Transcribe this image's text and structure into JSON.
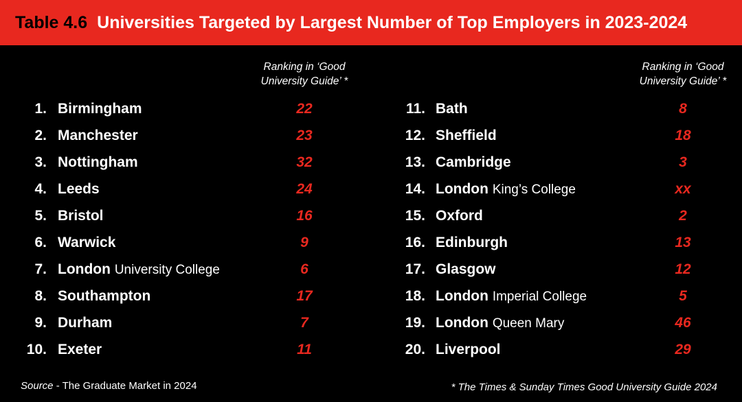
{
  "header": {
    "table_number": "Table 4.6",
    "title": "Universities Targeted by Largest Number of Top Employers in 2023-2024"
  },
  "column_header": {
    "line1": "Ranking in ‘Good",
    "line2": "University Guide’ *"
  },
  "left_rows": [
    {
      "num": "1.",
      "name": "Birmingham",
      "sub": "",
      "rank": "22"
    },
    {
      "num": "2.",
      "name": "Manchester",
      "sub": "",
      "rank": "23"
    },
    {
      "num": "3.",
      "name": "Nottingham",
      "sub": "",
      "rank": "32"
    },
    {
      "num": "4.",
      "name": "Leeds",
      "sub": "",
      "rank": "24"
    },
    {
      "num": "5.",
      "name": "Bristol",
      "sub": "",
      "rank": "16"
    },
    {
      "num": "6.",
      "name": "Warwick",
      "sub": "",
      "rank": "9"
    },
    {
      "num": "7.",
      "name": "London",
      "sub": "University College",
      "rank": "6"
    },
    {
      "num": "8.",
      "name": "Southampton",
      "sub": "",
      "rank": "17"
    },
    {
      "num": "9.",
      "name": "Durham",
      "sub": "",
      "rank": "7"
    },
    {
      "num": "10.",
      "name": "Exeter",
      "sub": "",
      "rank": "11"
    }
  ],
  "right_rows": [
    {
      "num": "11.",
      "name": "Bath",
      "sub": "",
      "rank": "8"
    },
    {
      "num": "12.",
      "name": "Sheffield",
      "sub": "",
      "rank": "18"
    },
    {
      "num": "13.",
      "name": "Cambridge",
      "sub": "",
      "rank": "3"
    },
    {
      "num": "14.",
      "name": "London",
      "sub": "King’s College",
      "rank": "xx"
    },
    {
      "num": "15.",
      "name": "Oxford",
      "sub": "",
      "rank": "2"
    },
    {
      "num": "16.",
      "name": "Edinburgh",
      "sub": "",
      "rank": "13"
    },
    {
      "num": "17.",
      "name": "Glasgow",
      "sub": "",
      "rank": "12"
    },
    {
      "num": "18.",
      "name": "London",
      "sub": "Imperial College",
      "rank": "5"
    },
    {
      "num": "19.",
      "name": "London",
      "sub": "Queen Mary",
      "rank": "46"
    },
    {
      "num": "20.",
      "name": "Liverpool",
      "sub": "",
      "rank": "29"
    }
  ],
  "footer": {
    "source_label": "Source",
    "source_text": " - The Graduate Market in 2024",
    "note": "* The Times & Sunday Times Good University Guide 2024"
  },
  "colors": {
    "accent": "#e8281f",
    "background": "#000000",
    "text": "#ffffff"
  }
}
